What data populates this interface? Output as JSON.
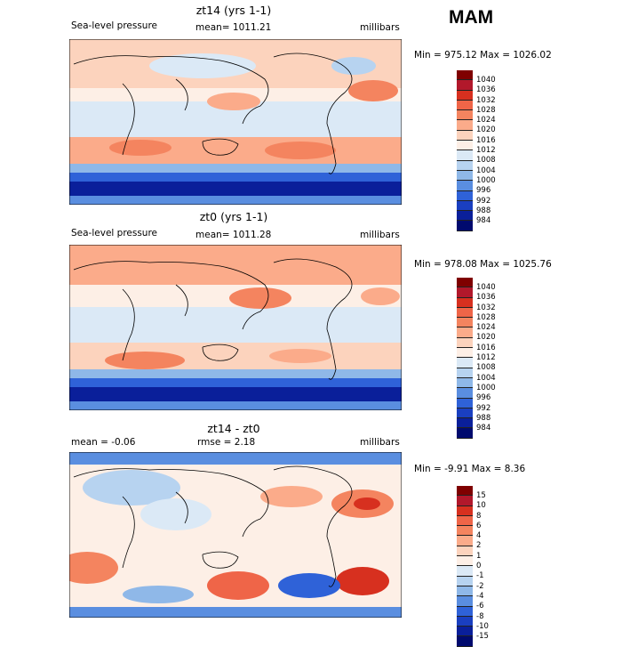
{
  "season": "MAM",
  "panels": [
    {
      "title": "zt14 (yrs 1-1)",
      "left_label": "Sea-level pressure",
      "mid_label": "mean= 1011.21",
      "right_label": "millibars",
      "minmax": "Min = 975.12 Max = 1026.02",
      "colorbar_labels": [
        "1040",
        "1036",
        "1032",
        "1028",
        "1024",
        "1020",
        "1016",
        "1012",
        "1008",
        "1004",
        "1000",
        "996",
        "992",
        "988",
        "984"
      ]
    },
    {
      "title": "zt0 (yrs 1-1)",
      "left_label": "Sea-level pressure",
      "mid_label": "mean= 1011.28",
      "right_label": "millibars",
      "minmax": "Min = 978.08 Max = 1025.76",
      "colorbar_labels": [
        "1040",
        "1036",
        "1032",
        "1028",
        "1024",
        "1020",
        "1016",
        "1012",
        "1008",
        "1004",
        "1000",
        "996",
        "992",
        "988",
        "984"
      ]
    },
    {
      "title": "zt14 - zt0",
      "left_label": "mean =   -0.06",
      "mid_label": "rmse =    2.18",
      "right_label": "millibars",
      "minmax": "Min =  -9.91 Max =    8.36",
      "colorbar_labels": [
        "15",
        "10",
        "8",
        "6",
        "4",
        "2",
        "1",
        "0",
        "-1",
        "-2",
        "-4",
        "-6",
        "-8",
        "-10",
        "-15"
      ]
    }
  ],
  "colors": {
    "abs_scale": [
      "#7f0000",
      "#b2182b",
      "#d7301f",
      "#ef6548",
      "#f4845f",
      "#fbab8a",
      "#fcd3bd",
      "#fdefe6",
      "#dbe9f6",
      "#b7d3f0",
      "#8fb8e8",
      "#5a8ee0",
      "#2f62d8",
      "#1a3fc0",
      "#0a1f9a",
      "#000a6e"
    ],
    "diff_scale": [
      "#7f0000",
      "#b2182b",
      "#d7301f",
      "#ef6548",
      "#f4845f",
      "#fbab8a",
      "#fcd3bd",
      "#fdefe6",
      "#dbe9f6",
      "#b7d3f0",
      "#8fb8e8",
      "#5a8ee0",
      "#2f62d8",
      "#1a3fc0",
      "#0a1f9a",
      "#000a6e"
    ]
  }
}
